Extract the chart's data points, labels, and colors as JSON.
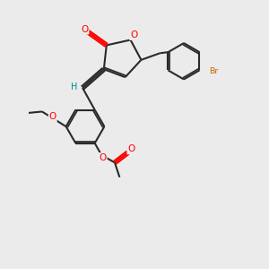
{
  "bg_color": "#ebebeb",
  "bond_color": "#2a2a2a",
  "atom_colors": {
    "O": "#ff0000",
    "Br": "#cc6600",
    "H": "#008888",
    "C": "#2a2a2a"
  }
}
